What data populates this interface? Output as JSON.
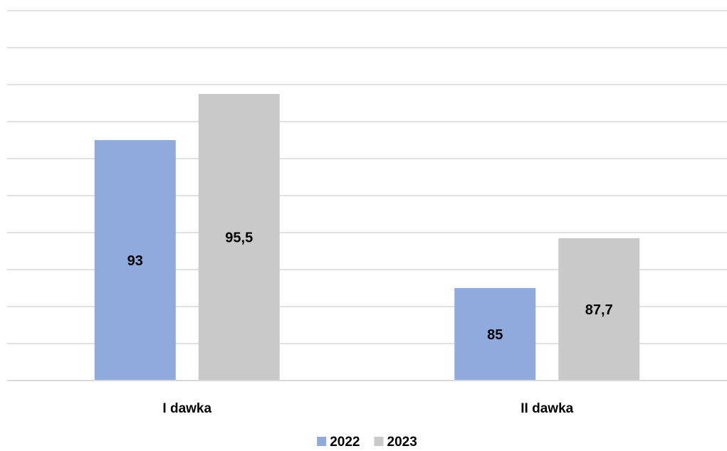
{
  "chart_data": {
    "type": "bar",
    "title": "",
    "xlabel": "",
    "ylabel": "",
    "categories": [
      "I dawka",
      "II dawka"
    ],
    "series": [
      {
        "name": "2022",
        "values": [
          93,
          85
        ],
        "value_labels": [
          "93",
          "85"
        ],
        "color": "#8faadc"
      },
      {
        "name": "2023",
        "values": [
          95.5,
          87.7
        ],
        "value_labels": [
          "95,5",
          "87,7"
        ],
        "color": "#c9c9c9"
      }
    ],
    "ylim": [
      80,
      100
    ],
    "y_tick_step": 2,
    "grid": true,
    "y_tick_labels_shown": false,
    "legend_position": "bottom"
  }
}
